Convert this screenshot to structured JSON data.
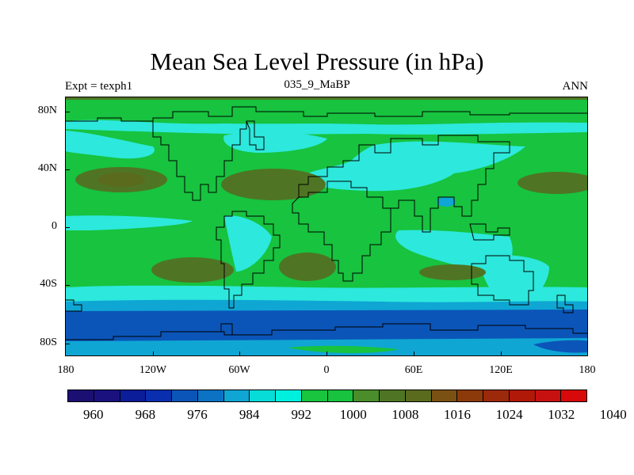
{
  "title": "Mean Sea Level Pressure (in hPa)",
  "subtitle_left": "Expt = texph1",
  "subtitle_center": "035_9_MaBP",
  "subtitle_right": "ANN",
  "y_axis_labels": [
    "80N",
    "40N",
    "0",
    "40S",
    "80S"
  ],
  "x_axis_labels": [
    "180",
    "120W",
    "60W",
    "0",
    "60E",
    "120E",
    "180"
  ],
  "colorbar": {
    "colors": [
      "#1c0f73",
      "#1a117e",
      "#0b1d99",
      "#0a2fae",
      "#0b55b8",
      "#0c72c4",
      "#0fa6d4",
      "#07dcd8",
      "#00f0e0",
      "#19c43f",
      "#17c33f",
      "#4a8d2a",
      "#4f7524",
      "#5a6b1d",
      "#7a5113",
      "#8d3a0b",
      "#9c2a0a",
      "#b01808",
      "#c71010",
      "#d8090a"
    ],
    "labels": [
      "960",
      "968",
      "976",
      "984",
      "992",
      "1000",
      "1008",
      "1016",
      "1024",
      "1032",
      "1040"
    ]
  },
  "levels": {
    "deep_low": "#0b55b8",
    "low": "#0fa6d4",
    "mid_low": "#2de8dc",
    "base": "#17c33f",
    "high": "#4f7524"
  }
}
